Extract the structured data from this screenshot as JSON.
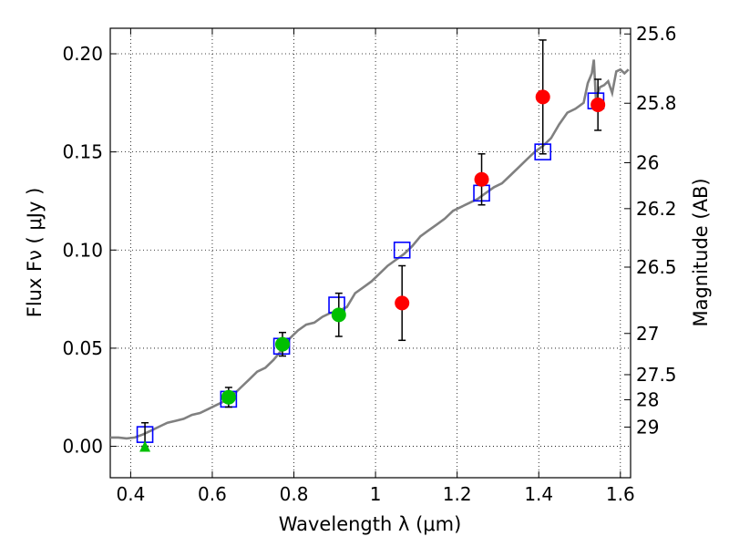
{
  "chart_data": {
    "type": "scatter",
    "xlabel": "Wavelength  λ (μm)",
    "ylabel": "Flux  Fν  ( μJy )",
    "y2label": "Magnitude (AB)",
    "xlim": [
      0.35,
      1.625
    ],
    "ylim": [
      -0.016,
      0.213
    ],
    "x_ticks": [
      0.4,
      0.6,
      0.8,
      1.0,
      1.2,
      1.4,
      1.6
    ],
    "x_tick_labels": [
      "0.4",
      "0.6",
      "0.8",
      "1",
      "1.2",
      "1.4",
      "1.6"
    ],
    "y_ticks": [
      0.0,
      0.05,
      0.1,
      0.15,
      0.2
    ],
    "y_tick_labels": [
      "0.00",
      "0.05",
      "0.10",
      "0.15",
      "0.20"
    ],
    "y2_ticks": [
      {
        "label": "25.6",
        "flux": 0.2101
      },
      {
        "label": "25.8",
        "flux": 0.1748
      },
      {
        "label": "26",
        "flux": 0.1445
      },
      {
        "label": "26.2",
        "flux": 0.1211
      },
      {
        "label": "26.5",
        "flux": 0.0913
      },
      {
        "label": "27",
        "flux": 0.0575
      },
      {
        "label": "27.5",
        "flux": 0.0365
      },
      {
        "label": "28",
        "flux": 0.0237
      },
      {
        "label": "29",
        "flux": 0.0098
      }
    ],
    "grid": true,
    "colors": {
      "model": "#808080",
      "model_photometry": "#0000ff",
      "observed_red": "#ff0000",
      "observed_green": "#00c000",
      "upper_limit": "#00c000",
      "errorbar": "#000000"
    },
    "model_spectrum": {
      "x": [
        0.35,
        0.37,
        0.39,
        0.41,
        0.43,
        0.45,
        0.47,
        0.49,
        0.51,
        0.53,
        0.55,
        0.57,
        0.59,
        0.61,
        0.63,
        0.65,
        0.67,
        0.69,
        0.71,
        0.73,
        0.75,
        0.77,
        0.79,
        0.81,
        0.83,
        0.85,
        0.87,
        0.89,
        0.91,
        0.93,
        0.95,
        0.97,
        0.99,
        1.01,
        1.03,
        1.05,
        1.07,
        1.09,
        1.11,
        1.13,
        1.15,
        1.17,
        1.19,
        1.21,
        1.23,
        1.25,
        1.27,
        1.29,
        1.31,
        1.33,
        1.35,
        1.37,
        1.39,
        1.41,
        1.43,
        1.45,
        1.47,
        1.49,
        1.51,
        1.52,
        1.53,
        1.535,
        1.54,
        1.55,
        1.56,
        1.57,
        1.58,
        1.59,
        1.6,
        1.61,
        1.62
      ],
      "y": [
        0.0045,
        0.0045,
        0.004,
        0.0045,
        0.006,
        0.008,
        0.01,
        0.012,
        0.013,
        0.014,
        0.016,
        0.017,
        0.019,
        0.021,
        0.023,
        0.026,
        0.03,
        0.034,
        0.038,
        0.04,
        0.044,
        0.049,
        0.055,
        0.059,
        0.062,
        0.063,
        0.066,
        0.068,
        0.069,
        0.071,
        0.078,
        0.081,
        0.084,
        0.088,
        0.092,
        0.095,
        0.098,
        0.102,
        0.107,
        0.11,
        0.113,
        0.116,
        0.12,
        0.122,
        0.124,
        0.126,
        0.129,
        0.132,
        0.134,
        0.138,
        0.142,
        0.146,
        0.15,
        0.153,
        0.157,
        0.164,
        0.17,
        0.172,
        0.175,
        0.185,
        0.19,
        0.197,
        0.177,
        0.183,
        0.184,
        0.186,
        0.18,
        0.191,
        0.192,
        0.19,
        0.192
      ]
    },
    "model_photometry": [
      {
        "x": 0.435,
        "y": 0.006
      },
      {
        "x": 0.64,
        "y": 0.024
      },
      {
        "x": 0.77,
        "y": 0.051
      },
      {
        "x": 0.905,
        "y": 0.072
      },
      {
        "x": 1.065,
        "y": 0.1
      },
      {
        "x": 1.26,
        "y": 0.129
      },
      {
        "x": 1.41,
        "y": 0.15
      },
      {
        "x": 1.54,
        "y": 0.176
      }
    ],
    "observed": [
      {
        "x": 0.435,
        "y": 0.006,
        "err": 0.006,
        "color": "green",
        "upper_limit": true
      },
      {
        "x": 0.64,
        "y": 0.025,
        "err": 0.005,
        "color": "green"
      },
      {
        "x": 0.772,
        "y": 0.052,
        "err": 0.006,
        "color": "green"
      },
      {
        "x": 0.91,
        "y": 0.067,
        "err": 0.011,
        "color": "green"
      },
      {
        "x": 1.065,
        "y": 0.073,
        "err": 0.019,
        "color": "red"
      },
      {
        "x": 1.26,
        "y": 0.136,
        "err": 0.013,
        "color": "red"
      },
      {
        "x": 1.41,
        "y": 0.178,
        "err": 0.029,
        "color": "red"
      },
      {
        "x": 1.545,
        "y": 0.174,
        "err": 0.013,
        "color": "red"
      }
    ]
  }
}
